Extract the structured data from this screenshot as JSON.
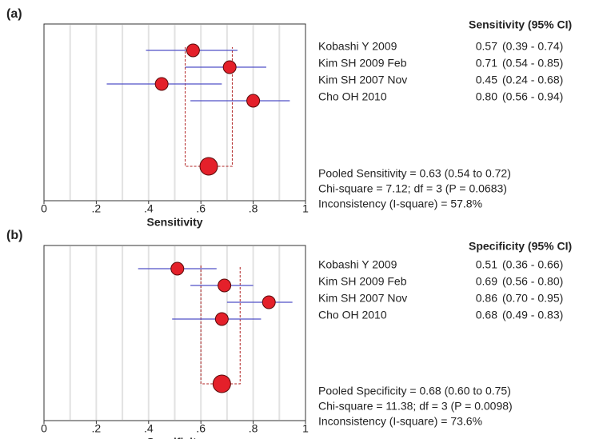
{
  "chart_data": [
    {
      "type": "forest",
      "panel_label": "(a)",
      "header": "Sensitivity (95% CI)",
      "x_label": "Sensitivity",
      "categories": [
        "Kobashi Y 2009",
        "Kim SH 2009 Feb",
        "Kim SH 2007 Nov",
        "Cho OH 2010"
      ],
      "values": [
        0.57,
        0.71,
        0.45,
        0.8
      ],
      "value_labels": [
        "0.57",
        "0.71",
        "0.45",
        "0.80"
      ],
      "ci_low": [
        0.39,
        0.54,
        0.24,
        0.56
      ],
      "ci_high": [
        0.74,
        0.85,
        0.68,
        0.94
      ],
      "ci_labels": [
        "(0.39 - 0.74)",
        "(0.54 - 0.85)",
        "(0.24 - 0.68)",
        "(0.56 - 0.94)"
      ],
      "pooled": {
        "value": 0.63,
        "low": 0.54,
        "high": 0.72,
        "label": "Pooled Sensitivity = 0.63 (0.54 to 0.72)"
      },
      "heterogeneity": "Chi-square = 7.12; df =  3 (P = 0.0683)",
      "inconsistency": "Inconsistency (I-square) = 57.8%",
      "color": "#e4202a",
      "ci_color": "#5151c8",
      "xlim": [
        0,
        1
      ],
      "xticks": [
        0,
        {
          "value": 0.2,
          "label": ".2"
        },
        {
          "value": 0.4,
          "label": ".4"
        },
        {
          "value": 0.6,
          "label": ".6"
        },
        {
          "value": 0.8,
          "label": ".8"
        },
        1
      ],
      "grid": true
    },
    {
      "type": "forest",
      "panel_label": "(b)",
      "header": "Specificity (95% CI)",
      "x_label": "Specificity",
      "categories": [
        "Kobashi Y 2009",
        "Kim SH 2009 Feb",
        "Kim SH 2007 Nov",
        "Cho OH 2010"
      ],
      "values": [
        0.51,
        0.69,
        0.86,
        0.68
      ],
      "value_labels": [
        "0.51",
        "0.69",
        "0.86",
        "0.68"
      ],
      "ci_low": [
        0.36,
        0.56,
        0.7,
        0.49
      ],
      "ci_high": [
        0.66,
        0.8,
        0.95,
        0.83
      ],
      "ci_labels": [
        "(0.36 - 0.66)",
        "(0.56 - 0.80)",
        "(0.70 - 0.95)",
        "(0.49 - 0.83)"
      ],
      "pooled": {
        "value": 0.68,
        "low": 0.6,
        "high": 0.75,
        "label": "Pooled Specificity = 0.68 (0.60 to 0.75)"
      },
      "heterogeneity": "Chi-square = 11.38; df =  3 (P = 0.0098)",
      "inconsistency": "Inconsistency (I-square) = 73.6%",
      "color": "#e4202a",
      "ci_color": "#5151c8",
      "xlim": [
        0,
        1
      ],
      "xticks": [
        0,
        {
          "value": 0.2,
          "label": ".2"
        },
        {
          "value": 0.4,
          "label": ".4"
        },
        {
          "value": 0.6,
          "label": ".6"
        },
        {
          "value": 0.8,
          "label": ".8"
        },
        1
      ],
      "grid": true
    }
  ]
}
